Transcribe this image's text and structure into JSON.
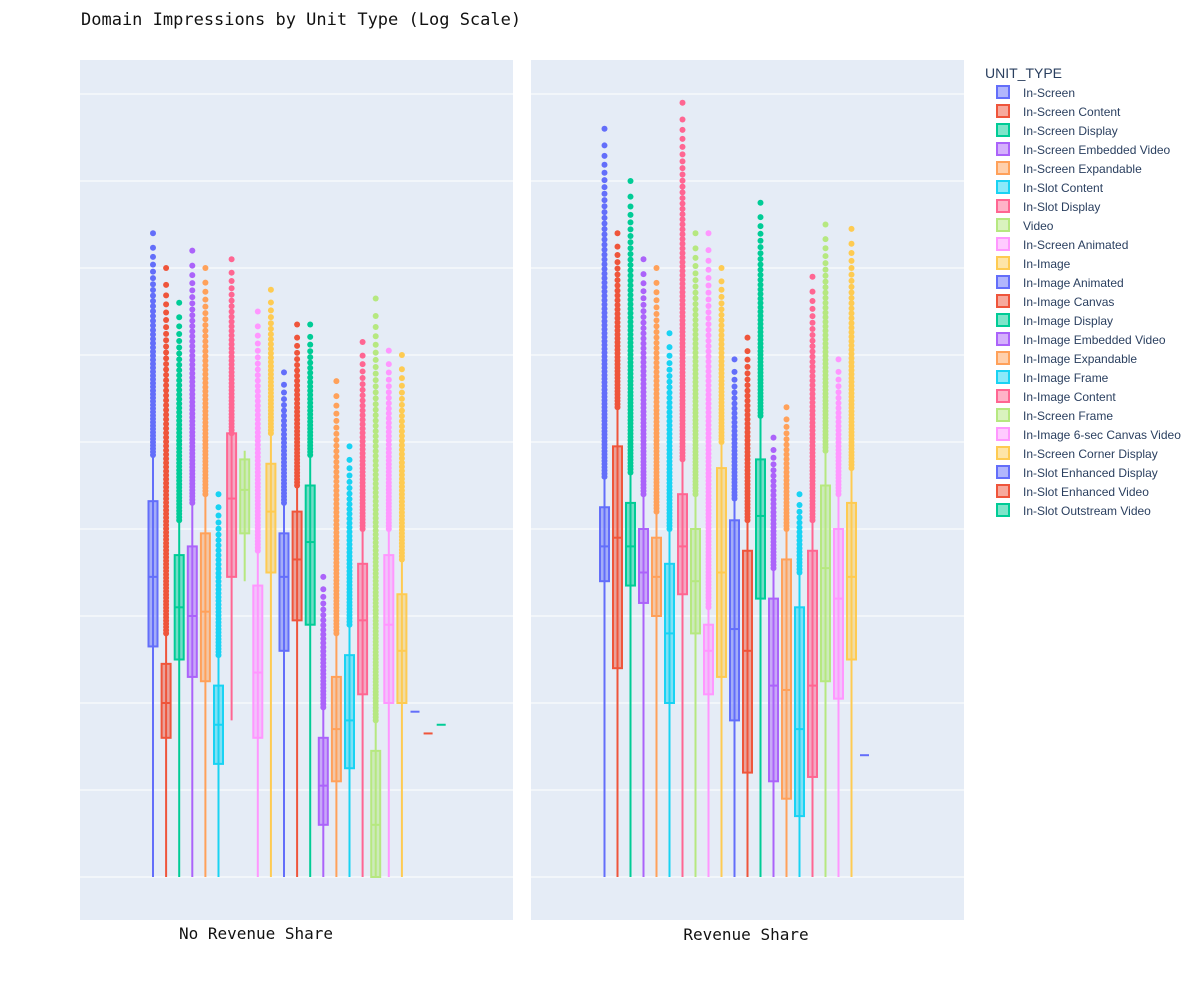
{
  "chart_data": {
    "type": "box",
    "title": "Domain Impressions by Unit Type (Log Scale)",
    "y_scale": "log",
    "y_tick_labels_visible": false,
    "grid": true,
    "legend_placement": "right",
    "legend_title": "UNIT_TYPE",
    "panels": [
      "No Revenue Share",
      "Revenue Share"
    ],
    "series": [
      {
        "name": "In-Screen",
        "color": "#636efa"
      },
      {
        "name": "In-Screen Content",
        "color": "#ef553b"
      },
      {
        "name": "In-Screen Display",
        "color": "#00cc96"
      },
      {
        "name": "In-Screen Embedded Video",
        "color": "#ab63fa"
      },
      {
        "name": "In-Screen Expandable",
        "color": "#ffa15a"
      },
      {
        "name": "In-Slot Content",
        "color": "#19d3f3"
      },
      {
        "name": "In-Slot Display",
        "color": "#ff6692"
      },
      {
        "name": "Video",
        "color": "#b6e880"
      },
      {
        "name": "In-Screen Animated",
        "color": "#ff97ff"
      },
      {
        "name": "In-Image",
        "color": "#fecb52"
      },
      {
        "name": "In-Image Animated",
        "color": "#636efa"
      },
      {
        "name": "In-Image Canvas",
        "color": "#ef553b"
      },
      {
        "name": "In-Image Display",
        "color": "#00cc96"
      },
      {
        "name": "In-Image Embedded Video",
        "color": "#ab63fa"
      },
      {
        "name": "In-Image Expandable",
        "color": "#ffa15a"
      },
      {
        "name": "In-Image Frame",
        "color": "#19d3f3"
      },
      {
        "name": "In-Image Content",
        "color": "#ff6692"
      },
      {
        "name": "In-Screen Frame",
        "color": "#b6e880"
      },
      {
        "name": "In-Image 6-sec Canvas Video",
        "color": "#ff97ff"
      },
      {
        "name": "In-Screen Corner Display",
        "color": "#fecb52"
      },
      {
        "name": "In-Slot Enhanced Display",
        "color": "#636efa"
      },
      {
        "name": "In-Slot Enhanced Video",
        "color": "#ef553b"
      },
      {
        "name": "In-Slot Outstream Video",
        "color": "#00cc96"
      }
    ],
    "y_range_log10": [
      0,
      9.5
    ],
    "boxes": {
      "No Revenue Share": [
        {
          "series": 0,
          "min": 0,
          "q1": 2.65,
          "median": 3.45,
          "q3": 4.32,
          "max": 4.85,
          "outlier_max": 7.4
        },
        {
          "series": 1,
          "min": 0,
          "q1": 1.6,
          "median": 2.0,
          "q3": 2.45,
          "max": 2.8,
          "outlier_max": 7.0
        },
        {
          "series": 2,
          "min": 0,
          "q1": 2.5,
          "median": 3.1,
          "q3": 3.7,
          "max": 4.1,
          "outlier_max": 6.6
        },
        {
          "series": 3,
          "min": 0,
          "q1": 2.3,
          "median": 3.0,
          "q3": 3.8,
          "max": 4.3,
          "outlier_max": 7.2
        },
        {
          "series": 4,
          "min": 0,
          "q1": 2.25,
          "median": 3.05,
          "q3": 3.95,
          "max": 4.4,
          "outlier_max": 7.0
        },
        {
          "series": 5,
          "min": 0,
          "q1": 1.3,
          "median": 1.75,
          "q3": 2.2,
          "max": 2.55,
          "outlier_max": 4.4
        },
        {
          "series": 6,
          "min": 1.8,
          "q1": 3.45,
          "median": 4.35,
          "q3": 5.1,
          "max": 5.1,
          "outlier_max": 7.1
        },
        {
          "series": 7,
          "min": 3.4,
          "q1": 3.95,
          "median": 4.45,
          "q3": 4.8,
          "max": 4.9,
          "outlier_max": 4.9
        },
        {
          "series": 8,
          "min": 0,
          "q1": 1.6,
          "median": 2.35,
          "q3": 3.35,
          "max": 3.75,
          "outlier_max": 6.5
        },
        {
          "series": 9,
          "min": 0,
          "q1": 3.5,
          "median": 4.2,
          "q3": 4.75,
          "max": 5.1,
          "outlier_max": 6.75
        },
        {
          "series": 10,
          "min": 0,
          "q1": 2.6,
          "median": 3.45,
          "q3": 3.95,
          "max": 4.3,
          "outlier_max": 5.8
        },
        {
          "series": 11,
          "min": 0,
          "q1": 2.95,
          "median": 3.65,
          "q3": 4.2,
          "max": 4.5,
          "outlier_max": 6.35
        },
        {
          "series": 12,
          "min": 0,
          "q1": 2.9,
          "median": 3.85,
          "q3": 4.5,
          "max": 4.85,
          "outlier_max": 6.35
        },
        {
          "series": 13,
          "min": 0,
          "q1": 0.6,
          "median": 1.05,
          "q3": 1.6,
          "max": 1.95,
          "outlier_max": 3.45
        },
        {
          "series": 14,
          "min": 0,
          "q1": 1.1,
          "median": 1.7,
          "q3": 2.3,
          "max": 2.8,
          "outlier_max": 5.7
        },
        {
          "series": 15,
          "min": 0,
          "q1": 1.25,
          "median": 1.8,
          "q3": 2.55,
          "max": 2.9,
          "outlier_max": 4.95
        },
        {
          "series": 16,
          "min": 0,
          "q1": 2.1,
          "median": 2.95,
          "q3": 3.6,
          "max": 4.0,
          "outlier_max": 6.15
        },
        {
          "series": 17,
          "min": 0,
          "q1": 0,
          "median": 0.6,
          "q3": 1.45,
          "max": 1.8,
          "outlier_max": 6.65
        },
        {
          "series": 18,
          "min": 0,
          "q1": 2.0,
          "median": 2.9,
          "q3": 3.7,
          "max": 4.0,
          "outlier_max": 6.05
        },
        {
          "series": 19,
          "min": 0,
          "q1": 2.0,
          "median": 2.6,
          "q3": 3.25,
          "max": 3.65,
          "outlier_max": 6.0
        },
        {
          "series": 20,
          "min": 1.9,
          "q1": 1.9,
          "median": 1.9,
          "q3": 1.9,
          "max": 1.9,
          "outlier_max": 1.9
        },
        {
          "series": 21,
          "min": 1.65,
          "q1": 1.65,
          "median": 1.65,
          "q3": 1.65,
          "max": 1.65,
          "outlier_max": 1.65
        },
        {
          "series": 22,
          "min": 1.75,
          "q1": 1.75,
          "median": 1.75,
          "q3": 1.75,
          "max": 1.75,
          "outlier_max": 1.75
        }
      ],
      "Revenue Share": [
        {
          "series": 0,
          "min": 0,
          "q1": 3.4,
          "median": 3.8,
          "q3": 4.25,
          "max": 4.6,
          "outlier_max": 8.6
        },
        {
          "series": 1,
          "min": 0,
          "q1": 2.4,
          "median": 3.9,
          "q3": 4.95,
          "max": 5.4,
          "outlier_max": 7.4
        },
        {
          "series": 2,
          "min": 0,
          "q1": 3.35,
          "median": 3.8,
          "q3": 4.3,
          "max": 4.65,
          "outlier_max": 8.0
        },
        {
          "series": 3,
          "min": 0,
          "q1": 3.15,
          "median": 3.5,
          "q3": 4.0,
          "max": 4.4,
          "outlier_max": 7.1
        },
        {
          "series": 4,
          "min": 0,
          "q1": 3.0,
          "median": 3.45,
          "q3": 3.9,
          "max": 4.2,
          "outlier_max": 7.0
        },
        {
          "series": 5,
          "min": 0,
          "q1": 2.0,
          "median": 2.8,
          "q3": 3.6,
          "max": 4.0,
          "outlier_max": 6.25
        },
        {
          "series": 6,
          "min": 0,
          "q1": 3.25,
          "median": 3.8,
          "q3": 4.4,
          "max": 4.8,
          "outlier_max": 8.9
        },
        {
          "series": 7,
          "min": 0,
          "q1": 2.8,
          "median": 3.4,
          "q3": 4.0,
          "max": 4.4,
          "outlier_max": 7.4
        },
        {
          "series": 8,
          "min": 0,
          "q1": 2.1,
          "median": 2.6,
          "q3": 2.9,
          "max": 3.1,
          "outlier_max": 7.4
        },
        {
          "series": 9,
          "min": 0,
          "q1": 2.3,
          "median": 3.5,
          "q3": 4.7,
          "max": 5.0,
          "outlier_max": 7.0
        },
        {
          "series": 10,
          "min": 0,
          "q1": 1.8,
          "median": 2.85,
          "q3": 4.1,
          "max": 4.35,
          "outlier_max": 5.95
        },
        {
          "series": 11,
          "min": 0,
          "q1": 1.2,
          "median": 2.6,
          "q3": 3.75,
          "max": 4.1,
          "outlier_max": 6.2
        },
        {
          "series": 12,
          "min": 0,
          "q1": 3.2,
          "median": 4.15,
          "q3": 4.8,
          "max": 5.3,
          "outlier_max": 7.75
        },
        {
          "series": 13,
          "min": 0,
          "q1": 1.1,
          "median": 2.2,
          "q3": 3.2,
          "max": 3.55,
          "outlier_max": 5.05
        },
        {
          "series": 14,
          "min": 0,
          "q1": 0.9,
          "median": 2.15,
          "q3": 3.65,
          "max": 4.0,
          "outlier_max": 5.4
        },
        {
          "series": 15,
          "min": 0,
          "q1": 0.7,
          "median": 1.7,
          "q3": 3.1,
          "max": 3.5,
          "outlier_max": 4.4
        },
        {
          "series": 16,
          "min": 0,
          "q1": 1.15,
          "median": 2.2,
          "q3": 3.75,
          "max": 4.1,
          "outlier_max": 6.9
        },
        {
          "series": 17,
          "min": 0,
          "q1": 2.25,
          "median": 3.55,
          "q3": 4.5,
          "max": 4.9,
          "outlier_max": 7.5
        },
        {
          "series": 18,
          "min": 0,
          "q1": 2.05,
          "median": 3.2,
          "q3": 4.0,
          "max": 4.4,
          "outlier_max": 5.95
        },
        {
          "series": 19,
          "min": 0,
          "q1": 2.5,
          "median": 3.45,
          "q3": 4.3,
          "max": 4.7,
          "outlier_max": 7.45
        },
        {
          "series": 20,
          "min": 1.4,
          "q1": 1.4,
          "median": 1.4,
          "q3": 1.4,
          "max": 1.4,
          "outlier_max": 1.4
        }
      ]
    }
  }
}
